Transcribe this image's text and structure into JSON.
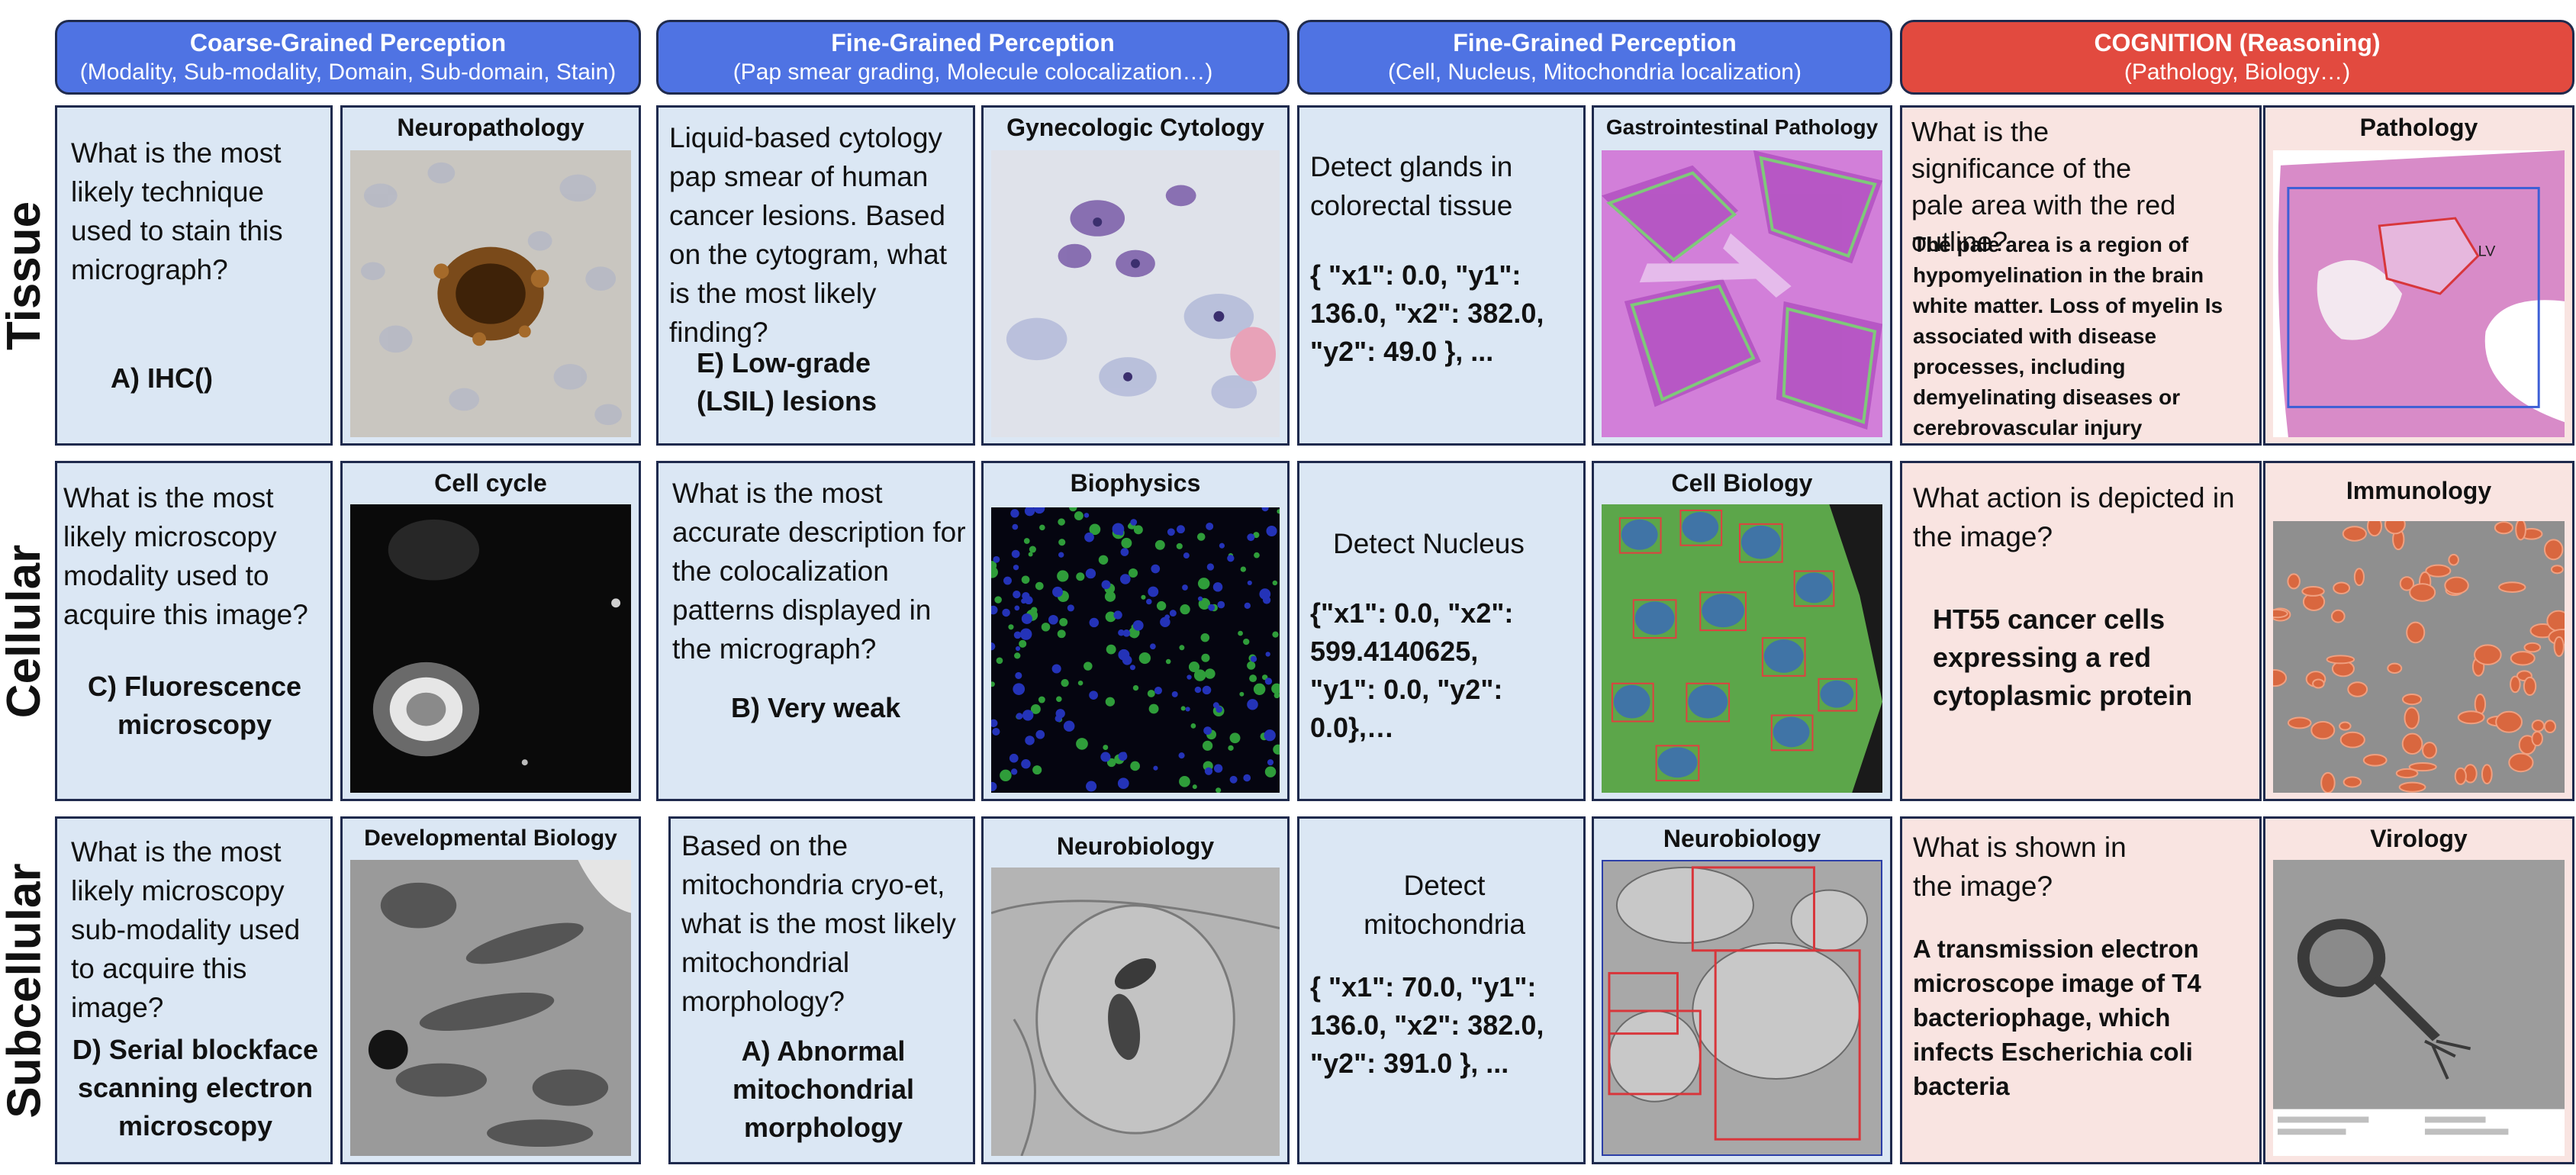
{
  "headers": [
    {
      "title": "Coarse-Grained Perception",
      "subtitle": "(Modality, Sub-modality, Domain, Sub-domain, Stain)"
    },
    {
      "title": "Fine-Grained Perception",
      "subtitle": "(Pap smear grading, Molecule colocalization…)"
    },
    {
      "title": "Fine-Grained Perception",
      "subtitle": "(Cell, Nucleus, Mitochondria localization)"
    },
    {
      "title": "COGNITION (Reasoning)",
      "subtitle": "(Pathology, Biology…)"
    }
  ],
  "rows": [
    "Tissue",
    "Cellular",
    "Subcellular"
  ],
  "tissue": {
    "coarse": {
      "q": "What is the most likely technique used to stain this micrograph?",
      "a": "A) IHC()",
      "img": "Neuropathology"
    },
    "fine1": {
      "q": "Liquid-based cytology pap smear of human cancer lesions. Based on the cytogram, what is the most likely finding?",
      "a": "E) Low-grade (LSIL) lesions",
      "img": "Gynecologic Cytology"
    },
    "fine2": {
      "q": "Detect  glands in colorectal tissue",
      "a": "{ \"x1\": 0.0, \"y1\": 136.0, \"x2\": 382.0, \"y2\": 49.0 }, ...",
      "img": "Gastrointestinal Pathology"
    },
    "cog": {
      "q": "What is the significance of  the pale area with the red outline?",
      "a": "The pale area is a region of hypomyelination in the brain white matter. Loss of myelin Is associated with disease processes, including demyelinating diseases or cerebrovascular injury",
      "img": "Pathology",
      "img_label": "LV"
    }
  },
  "cellular": {
    "coarse": {
      "q": "What is the most likely microscopy modality used to acquire this image?",
      "a": "C) Fluorescence microscopy",
      "img": "Cell cycle"
    },
    "fine1": {
      "q": "What is the most accurate description for the colocalization patterns displayed in the micrograph?",
      "a": "B) Very weak",
      "img": "Biophysics"
    },
    "fine2": {
      "q": "Detect Nucleus",
      "a": "{\"x1\": 0.0, \"x2\": 599.4140625, \"y1\": 0.0, \"y2\": 0.0},…",
      "img": "Cell Biology"
    },
    "cog": {
      "q": "What action is depicted in the image?",
      "a": "HT55 cancer cells expressing a red cytoplasmic protein",
      "img": "Immunology"
    }
  },
  "subcellular": {
    "coarse": {
      "q": "What is the most likely microscopy sub-modality used to acquire this image?",
      "a": "D) Serial blockface scanning electron microscopy",
      "img": "Developmental Biology"
    },
    "fine1": {
      "q": "Based on the mitochondria cryo-et, what is the most likely mitochondrial morphology?",
      "a": "A) Abnormal mitochondrial morphology",
      "img": "Neurobiology"
    },
    "fine2": {
      "q": "Detect mitochondria",
      "a": "{ \"x1\": 70.0, \"y1\": 136.0, \"x2\": 382.0, \"y2\": 391.0 }, ...",
      "img": "Neurobiology"
    },
    "cog": {
      "q": "What is shown in  the image?",
      "a": "A transmission electron microscope image of T4 bacteriophage, which infects Escherichia coli bacteria",
      "img": "Virology"
    }
  },
  "colors": {
    "header_blue": "#4f73e3",
    "header_red": "#e24a3f",
    "panel_blue": "#dbe7f4",
    "panel_pink": "#f9e4e1"
  }
}
